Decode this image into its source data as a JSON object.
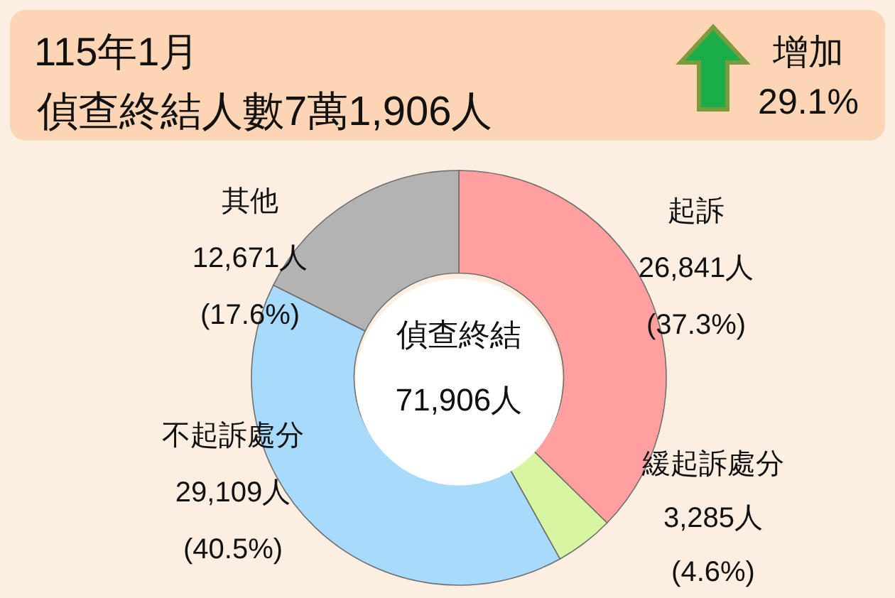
{
  "chart_data": {
    "type": "donut",
    "title": "115年1月",
    "subtitle": "偵查終結人數7萬1,906人",
    "categories": [
      "起訴",
      "緩起訴處分",
      "不起訴處分",
      "其他"
    ],
    "values": [
      26841,
      3285,
      29109,
      12671
    ],
    "colors": [
      "#ff9f9f",
      "#d8f5a2",
      "#a8dbfb",
      "#b3b3b3"
    ],
    "value_labels": [
      "26,841人\n(37.3%)",
      "3,285人\n(4.6%)",
      "29,109人\n(40.5%)",
      "12,671人\n(17.6%)"
    ],
    "annotations": [
      "增加\n29.1%",
      "偵查終結\n71,906人"
    ]
  }
}
